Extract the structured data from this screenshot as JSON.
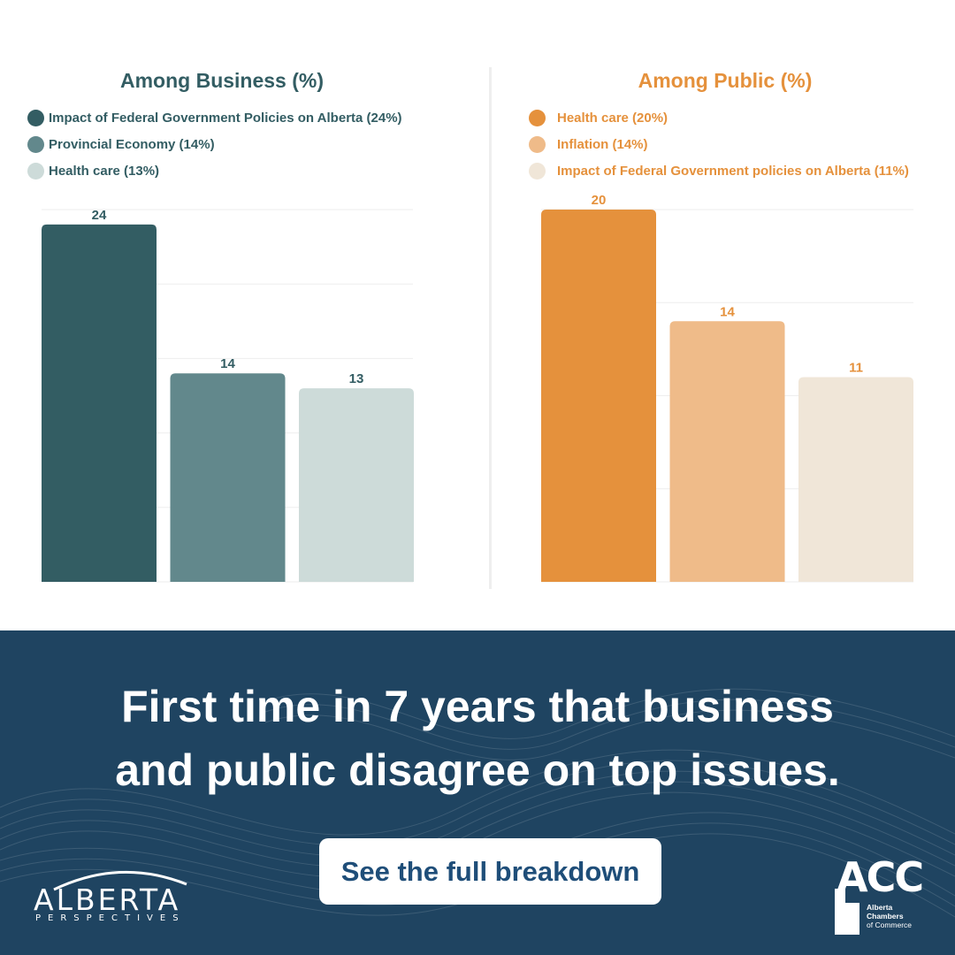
{
  "colors": {
    "business_title": "#335d63",
    "public_title": "#e5913c",
    "banner_bg": "#1f4461",
    "cta_text": "#1f4e79",
    "gridline": "#eeeeee"
  },
  "chart_data": [
    {
      "type": "bar",
      "title": "Among Business (%)",
      "categories": [
        "Impact of Federal Government Policies on Alberta (24%)",
        "Provincial Economy (14%)",
        "Health care (13%)"
      ],
      "values": [
        24,
        14,
        13
      ],
      "colors": [
        "#335d63",
        "#62888c",
        "#cddbd9"
      ],
      "ylim": [
        0,
        25
      ],
      "grid": true,
      "legend_position": "top-left"
    },
    {
      "type": "bar",
      "title": "Among Public (%)",
      "categories": [
        "Health care (20%)",
        "Inflation (14%)",
        "Impact of Federal Government policies on Alberta (11%)"
      ],
      "values": [
        20,
        14,
        11
      ],
      "colors": [
        "#e5913c",
        "#efbb89",
        "#f0e6d8"
      ],
      "ylim": [
        0,
        20
      ],
      "grid": true,
      "legend_position": "top-left"
    }
  ],
  "banner": {
    "headline_line1": "First time in 7 years that business",
    "headline_line2": "and public disagree on top issues.",
    "cta_label": "See the full breakdown"
  },
  "logos": {
    "alberta_perspectives": {
      "word": "ALBERTA",
      "sub": "PERSPECTIVES"
    },
    "acc": {
      "letters": "ACC",
      "line1": "Alberta",
      "line2": "Chambers",
      "line3": "of Commerce"
    }
  }
}
